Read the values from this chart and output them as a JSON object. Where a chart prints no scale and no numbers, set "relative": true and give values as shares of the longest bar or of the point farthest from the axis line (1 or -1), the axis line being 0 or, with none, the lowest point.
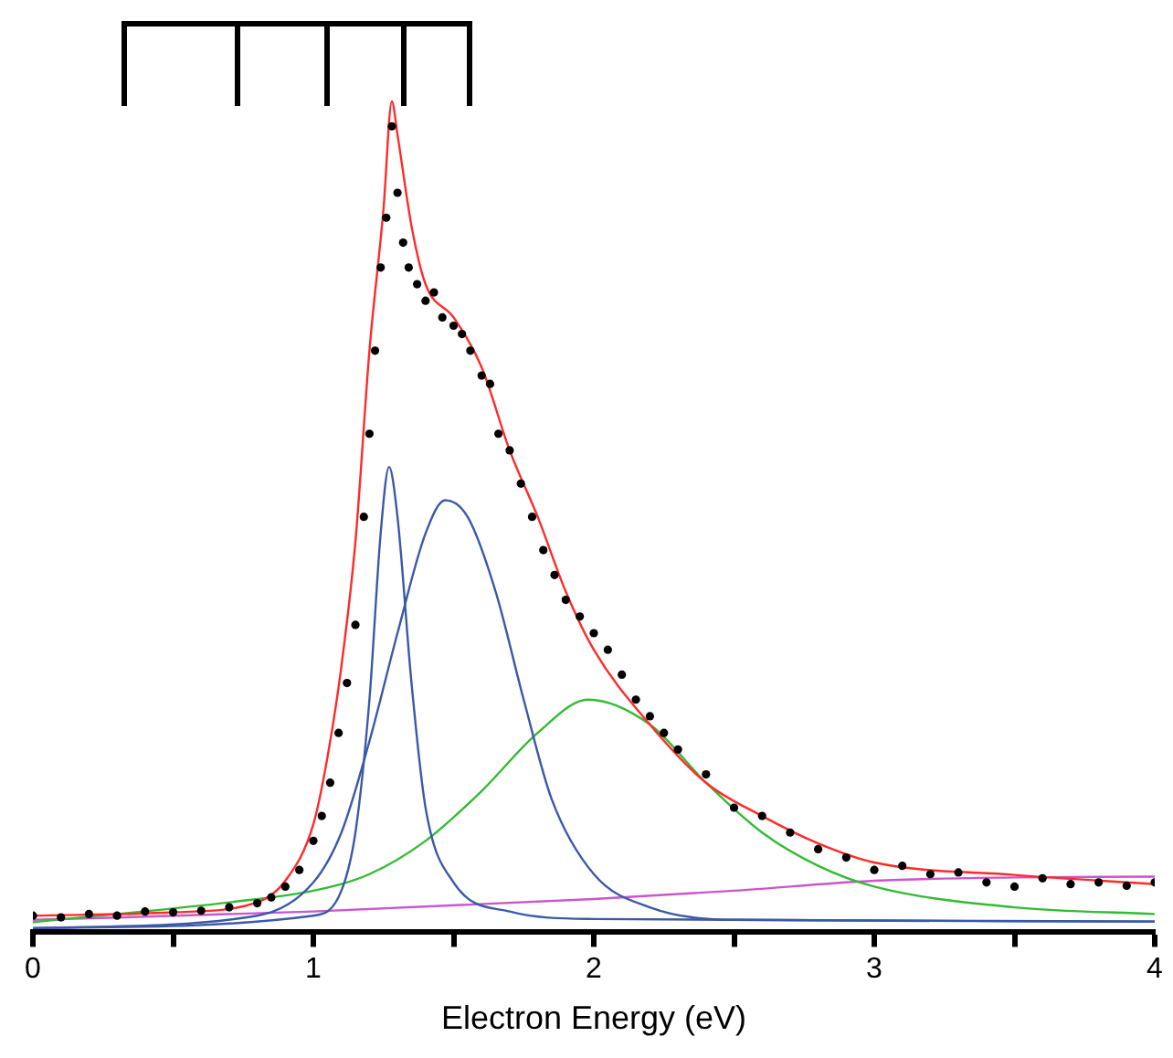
{
  "chart_data": {
    "type": "line",
    "relative": true,
    "xlabel": "Electron Energy (eV)",
    "xlim": [
      0,
      4
    ],
    "xticks": [
      0,
      {
        "value": 0.5,
        "label": null
      },
      1,
      {
        "value": 1.5,
        "label": null
      },
      2,
      {
        "value": 2.5,
        "label": null
      },
      3,
      {
        "value": 3.5,
        "label": null
      },
      4
    ],
    "grid": false,
    "legend": false,
    "series": [
      {
        "type": "scatter",
        "marker": "circle",
        "color": "#000000",
        "x": [
          0,
          0.1,
          0.2,
          0.3,
          0.4,
          0.5,
          0.6,
          0.7,
          0.8,
          0.85,
          0.9,
          0.95,
          1.0,
          1.03,
          1.06,
          1.09,
          1.12,
          1.15,
          1.18,
          1.2,
          1.22,
          1.24,
          1.26,
          1.28,
          1.3,
          1.32,
          1.34,
          1.37,
          1.4,
          1.43,
          1.46,
          1.5,
          1.53,
          1.56,
          1.6,
          1.63,
          1.66,
          1.7,
          1.74,
          1.78,
          1.82,
          1.86,
          1.9,
          1.95,
          2.0,
          2.05,
          2.1,
          2.15,
          2.2,
          2.25,
          2.3,
          2.4,
          2.5,
          2.6,
          2.7,
          2.8,
          2.9,
          3.0,
          3.1,
          3.2,
          3.3,
          3.4,
          3.5,
          3.6,
          3.7,
          3.8,
          3.9,
          4.0
        ],
        "values": [
          0.02,
          0.018,
          0.022,
          0.02,
          0.025,
          0.024,
          0.026,
          0.03,
          0.035,
          0.042,
          0.055,
          0.075,
          0.11,
          0.14,
          0.18,
          0.24,
          0.3,
          0.37,
          0.5,
          0.6,
          0.7,
          0.8,
          0.86,
          0.97,
          0.89,
          0.83,
          0.8,
          0.78,
          0.76,
          0.77,
          0.74,
          0.73,
          0.72,
          0.7,
          0.67,
          0.66,
          0.6,
          0.58,
          0.54,
          0.5,
          0.46,
          0.43,
          0.4,
          0.38,
          0.36,
          0.34,
          0.31,
          0.28,
          0.26,
          0.24,
          0.22,
          0.19,
          0.15,
          0.14,
          0.12,
          0.1,
          0.09,
          0.075,
          0.08,
          0.07,
          0.072,
          0.06,
          0.055,
          0.065,
          0.058,
          0.06,
          0.056,
          0.06
        ]
      },
      {
        "color": "#ff2a2a",
        "x": [
          0,
          0.5,
          0.8,
          0.9,
          1.0,
          1.05,
          1.1,
          1.15,
          1.2,
          1.25,
          1.28,
          1.3,
          1.35,
          1.4,
          1.5,
          1.6,
          1.7,
          1.8,
          1.9,
          2.0,
          2.2,
          2.4,
          2.6,
          2.8,
          3.0,
          3.5,
          4.0
        ],
        "values": [
          0.02,
          0.024,
          0.036,
          0.062,
          0.13,
          0.21,
          0.32,
          0.47,
          0.7,
          0.87,
          1,
          0.96,
          0.85,
          0.78,
          0.74,
          0.68,
          0.58,
          0.5,
          0.41,
          0.34,
          0.25,
          0.18,
          0.14,
          0.107,
          0.084,
          0.069,
          0.058
        ]
      },
      {
        "color": "#3a5aa8",
        "x": [
          0,
          1.0,
          1.1,
          1.15,
          1.2,
          1.24,
          1.27,
          1.3,
          1.35,
          1.4,
          1.5,
          1.7,
          2.0,
          4.0
        ],
        "values": [
          0.005,
          0.02,
          0.05,
          0.12,
          0.28,
          0.48,
          0.56,
          0.5,
          0.3,
          0.15,
          0.06,
          0.025,
          0.016,
          0.013
        ]
      },
      {
        "color": "#3a5aa8",
        "x": [
          0,
          0.8,
          1.0,
          1.1,
          1.2,
          1.3,
          1.4,
          1.47,
          1.55,
          1.65,
          1.75,
          1.85,
          2.0,
          2.2,
          2.5,
          4.0
        ],
        "values": [
          0.005,
          0.02,
          0.06,
          0.12,
          0.23,
          0.36,
          0.48,
          0.52,
          0.5,
          0.41,
          0.28,
          0.16,
          0.07,
          0.03,
          0.015,
          0.013
        ]
      },
      {
        "color": "#33bb33",
        "x": [
          0,
          0.8,
          1.0,
          1.2,
          1.4,
          1.6,
          1.8,
          1.98,
          2.2,
          2.4,
          2.6,
          2.8,
          3.0,
          3.5,
          4.0
        ],
        "values": [
          0.012,
          0.04,
          0.05,
          0.07,
          0.11,
          0.17,
          0.24,
          0.28,
          0.25,
          0.18,
          0.12,
          0.08,
          0.055,
          0.03,
          0.022
        ]
      },
      {
        "color": "#cc55cc",
        "x": [
          0,
          1,
          2,
          2.5,
          3,
          3.5,
          4
        ],
        "values": [
          0.015,
          0.025,
          0.04,
          0.05,
          0.062,
          0.066,
          0.067
        ]
      }
    ]
  }
}
